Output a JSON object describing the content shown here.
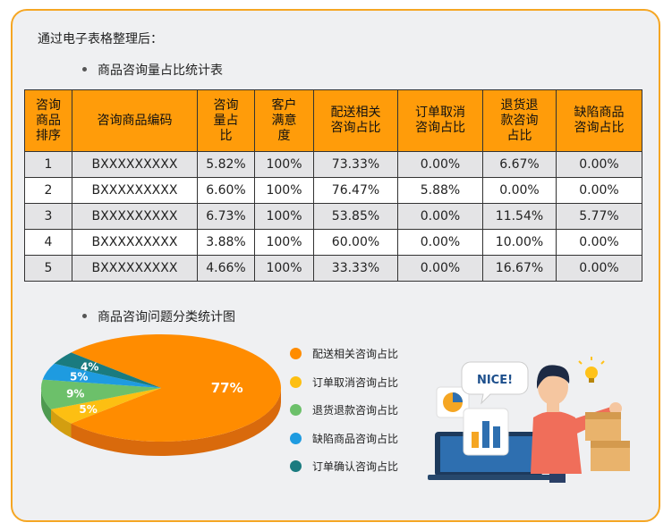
{
  "intro": "通过电子表格整理后：",
  "table_section": {
    "title": "商品咨询量占比统计表"
  },
  "table": {
    "headers": [
      [
        "咨询",
        "商品",
        "排序"
      ],
      [
        "咨询商品编码"
      ],
      [
        "咨询",
        "量占",
        "比"
      ],
      [
        "客户",
        "满意",
        "度"
      ],
      [
        "配送相关",
        "咨询占比"
      ],
      [
        "订单取消",
        "咨询占比"
      ],
      [
        "退货退",
        "款咨询",
        "占比"
      ],
      [
        "缺陷商品",
        "咨询占比"
      ]
    ],
    "rows": [
      [
        "1",
        "BXXXXXXXXX",
        "5.82%",
        "100%",
        "73.33%",
        "0.00%",
        "6.67%",
        "0.00%"
      ],
      [
        "2",
        "BXXXXXXXXX",
        "6.60%",
        "100%",
        "76.47%",
        "5.88%",
        "0.00%",
        "0.00%"
      ],
      [
        "3",
        "BXXXXXXXXX",
        "6.73%",
        "100%",
        "53.85%",
        "0.00%",
        "11.54%",
        "5.77%"
      ],
      [
        "4",
        "BXXXXXXXXX",
        "3.88%",
        "100%",
        "60.00%",
        "0.00%",
        "10.00%",
        "0.00%"
      ],
      [
        "5",
        "BXXXXXXXXX",
        "4.66%",
        "100%",
        "33.33%",
        "0.00%",
        "16.67%",
        "0.00%"
      ]
    ]
  },
  "chart_section": {
    "title": "商品咨询问题分类统计图"
  },
  "chart_data": {
    "type": "pie",
    "categories": [
      "配送相关咨询占比",
      "订单取消咨询占比",
      "退货退款咨询占比",
      "缺陷商品咨询占比",
      "订单确认咨询占比"
    ],
    "values": [
      77,
      5,
      9,
      5,
      4
    ],
    "labels": [
      "77%",
      "5%",
      "9%",
      "5%",
      "4%"
    ],
    "colors": [
      "#ff8c00",
      "#fdbf12",
      "#6cc06a",
      "#1e9be0",
      "#1a7b7f"
    ],
    "dark_colors": [
      "#d96a0c",
      "#d39e10",
      "#4e9a50",
      "#1678b0",
      "#125a5e"
    ],
    "legend_position": "right"
  },
  "illustration": {
    "speech_text": "NICE!"
  }
}
